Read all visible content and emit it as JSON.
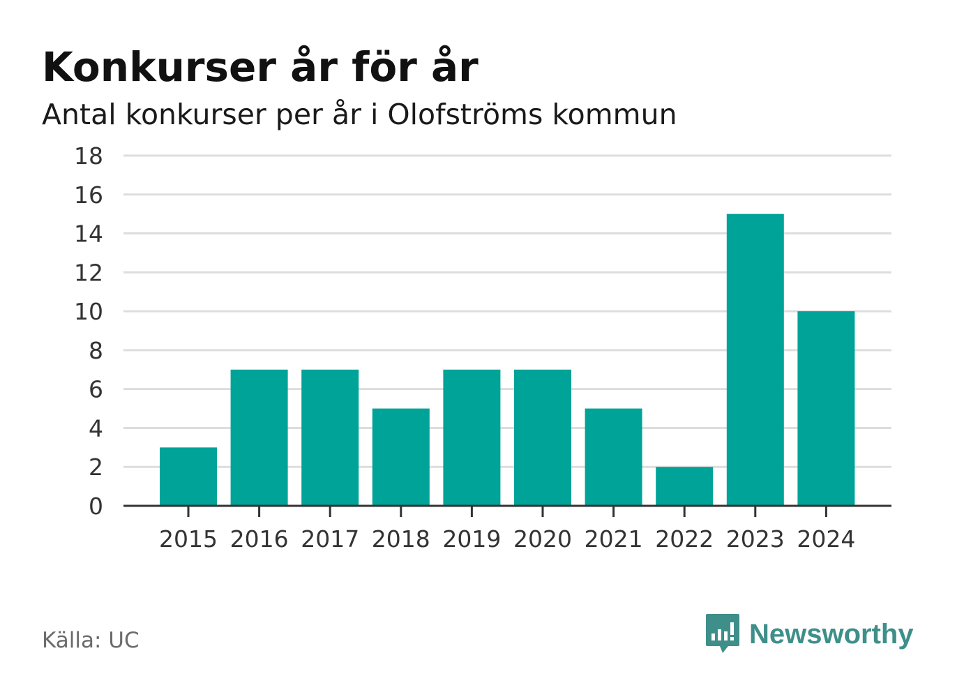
{
  "header": {
    "title": "Konkurser år för år",
    "subtitle": "Antal konkurser per år i Olofströms kommun"
  },
  "footer": {
    "source": "Källa: UC",
    "brand": "Newsworthy",
    "brand_icon": "newsworthy-logo-icon"
  },
  "colors": {
    "bar": "#00a398",
    "grid": "#dddddd",
    "axis": "#333333",
    "tick_text": "#333333",
    "brand": "#3e8f8a"
  },
  "chart_data": {
    "type": "bar",
    "title": "Konkurser år för år",
    "subtitle": "Antal konkurser per år i Olofströms kommun",
    "categories": [
      "2015",
      "2016",
      "2017",
      "2018",
      "2019",
      "2020",
      "2021",
      "2022",
      "2023",
      "2024"
    ],
    "values": [
      3,
      7,
      7,
      5,
      7,
      7,
      5,
      2,
      15,
      10
    ],
    "ylim": [
      0,
      18
    ],
    "yticks": [
      0,
      2,
      4,
      6,
      8,
      10,
      12,
      14,
      16,
      18
    ],
    "grid": true,
    "xlabel": "",
    "ylabel": ""
  }
}
